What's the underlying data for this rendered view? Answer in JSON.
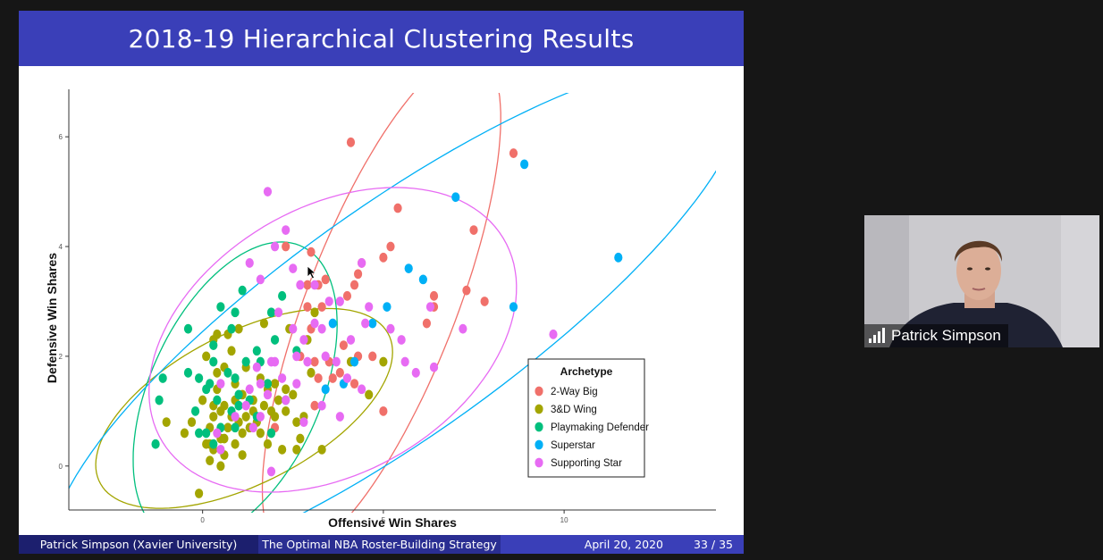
{
  "slide": {
    "title": "2018-19 Hierarchical Clustering Results",
    "footer": {
      "author": "Patrick Simpson  (Xavier University)",
      "talk_title": "The Optimal NBA Roster-Building Strategy",
      "date": "April 20, 2020",
      "page": "33 / 35"
    }
  },
  "video": {
    "participant_name": "Patrick Simpson",
    "icon": "signal-strength-icon"
  },
  "chart_data": {
    "type": "scatter",
    "xlabel": "Offensive Win Shares",
    "ylabel": "Defensive Win Shares",
    "x_ticks": [
      "0",
      "5",
      "10"
    ],
    "y_ticks": [
      "0",
      "2",
      "4",
      "6"
    ],
    "xlim": [
      -3.7,
      14.2
    ],
    "ylim": [
      -0.85,
      6.8
    ],
    "grid": false,
    "legend": {
      "title": "Archetype",
      "position": "bottom-right"
    },
    "series": [
      {
        "name": "2-Way Big",
        "color": "#f0706a",
        "points": [
          [
            4.1,
            5.9
          ],
          [
            8.6,
            5.7
          ],
          [
            5.4,
            4.7
          ],
          [
            7.5,
            4.3
          ],
          [
            2.3,
            4.0
          ],
          [
            3.0,
            3.9
          ],
          [
            4.4,
            3.7
          ],
          [
            5.2,
            4.0
          ],
          [
            5.0,
            3.8
          ],
          [
            4.3,
            3.5
          ],
          [
            3.4,
            3.4
          ],
          [
            2.9,
            3.3
          ],
          [
            3.2,
            3.3
          ],
          [
            4.2,
            3.3
          ],
          [
            7.3,
            3.2
          ],
          [
            7.8,
            3.0
          ],
          [
            6.4,
            3.1
          ],
          [
            4.0,
            3.1
          ],
          [
            2.9,
            2.9
          ],
          [
            3.3,
            2.9
          ],
          [
            3.0,
            2.5
          ],
          [
            6.2,
            2.6
          ],
          [
            6.4,
            2.9
          ],
          [
            3.9,
            2.2
          ],
          [
            4.3,
            2.0
          ],
          [
            4.7,
            2.0
          ],
          [
            2.7,
            2.0
          ],
          [
            3.1,
            1.9
          ],
          [
            3.2,
            1.6
          ],
          [
            3.6,
            1.6
          ],
          [
            3.8,
            1.7
          ],
          [
            4.2,
            1.5
          ],
          [
            3.1,
            1.1
          ],
          [
            5.0,
            1.0
          ],
          [
            2.0,
            0.7
          ],
          [
            3.5,
            1.9
          ]
        ]
      },
      {
        "name": "3&D Wing",
        "color": "#a3a500",
        "points": [
          [
            -0.1,
            -0.5
          ],
          [
            0.3,
            2.3
          ],
          [
            0.4,
            2.4
          ],
          [
            0.7,
            2.4
          ],
          [
            1.0,
            2.5
          ],
          [
            2.4,
            2.5
          ],
          [
            3.1,
            2.8
          ],
          [
            1.7,
            2.6
          ],
          [
            0.1,
            2.0
          ],
          [
            0.6,
            1.8
          ],
          [
            0.8,
            2.1
          ],
          [
            1.2,
            1.8
          ],
          [
            1.6,
            1.6
          ],
          [
            2.0,
            1.5
          ],
          [
            2.3,
            1.4
          ],
          [
            2.9,
            2.3
          ],
          [
            3.0,
            1.7
          ],
          [
            0.4,
            1.4
          ],
          [
            0.9,
            1.5
          ],
          [
            1.1,
            1.3
          ],
          [
            1.4,
            1.2
          ],
          [
            1.7,
            1.1
          ],
          [
            1.9,
            1.0
          ],
          [
            2.1,
            1.2
          ],
          [
            2.5,
            1.3
          ],
          [
            0.3,
            1.1
          ],
          [
            0.5,
            1.0
          ],
          [
            0.8,
            0.9
          ],
          [
            1.0,
            0.8
          ],
          [
            1.3,
            0.7
          ],
          [
            1.6,
            0.6
          ],
          [
            2.6,
            0.8
          ],
          [
            2.7,
            0.5
          ],
          [
            0.2,
            0.7
          ],
          [
            0.6,
            0.5
          ],
          [
            0.9,
            0.4
          ],
          [
            1.1,
            0.2
          ],
          [
            0.2,
            0.1
          ],
          [
            0.5,
            0.0
          ],
          [
            1.8,
            0.4
          ],
          [
            2.2,
            0.3
          ],
          [
            2.6,
            0.3
          ],
          [
            3.3,
            0.3
          ],
          [
            -1.0,
            0.8
          ],
          [
            -0.5,
            0.6
          ],
          [
            -0.3,
            0.8
          ],
          [
            0.0,
            1.2
          ],
          [
            0.3,
            0.9
          ],
          [
            0.5,
            0.5
          ],
          [
            0.2,
            0.4
          ],
          [
            0.6,
            1.1
          ],
          [
            1.2,
            0.9
          ],
          [
            1.5,
            0.8
          ],
          [
            2.0,
            0.9
          ],
          [
            2.3,
            1.0
          ],
          [
            1.8,
            1.4
          ],
          [
            0.9,
            1.2
          ],
          [
            0.4,
            1.7
          ],
          [
            4.1,
            1.9
          ],
          [
            5.0,
            1.9
          ],
          [
            4.6,
            1.3
          ],
          [
            0.1,
            0.4
          ],
          [
            0.3,
            0.3
          ],
          [
            1.4,
            1.0
          ],
          [
            0.7,
            0.7
          ],
          [
            2.8,
            0.9
          ],
          [
            1.1,
            0.6
          ],
          [
            0.6,
            0.2
          ]
        ]
      },
      {
        "name": "Playmaking Defender",
        "color": "#00bf7d",
        "points": [
          [
            1.1,
            3.2
          ],
          [
            2.2,
            3.1
          ],
          [
            0.5,
            2.9
          ],
          [
            0.9,
            2.8
          ],
          [
            1.9,
            2.8
          ],
          [
            -0.4,
            2.5
          ],
          [
            0.8,
            2.5
          ],
          [
            2.0,
            2.3
          ],
          [
            0.3,
            2.2
          ],
          [
            1.5,
            2.1
          ],
          [
            2.6,
            2.1
          ],
          [
            0.3,
            1.9
          ],
          [
            1.2,
            1.9
          ],
          [
            -0.4,
            1.7
          ],
          [
            -1.1,
            1.6
          ],
          [
            -0.1,
            1.6
          ],
          [
            0.9,
            1.6
          ],
          [
            1.8,
            1.5
          ],
          [
            0.1,
            1.4
          ],
          [
            1.0,
            1.3
          ],
          [
            -1.2,
            1.2
          ],
          [
            0.4,
            1.2
          ],
          [
            1.3,
            1.2
          ],
          [
            2.3,
            1.2
          ],
          [
            -0.2,
            1.0
          ],
          [
            0.8,
            1.0
          ],
          [
            1.5,
            0.9
          ],
          [
            0.5,
            0.7
          ],
          [
            -0.1,
            0.6
          ],
          [
            0.9,
            0.7
          ],
          [
            1.9,
            0.6
          ],
          [
            0.3,
            0.4
          ],
          [
            -1.3,
            0.4
          ],
          [
            0.1,
            0.6
          ],
          [
            0.7,
            1.7
          ],
          [
            1.6,
            1.9
          ],
          [
            0.2,
            1.5
          ],
          [
            1.0,
            1.1
          ]
        ]
      },
      {
        "name": "Superstar",
        "color": "#00b0f6",
        "points": [
          [
            8.9,
            5.5
          ],
          [
            7.0,
            4.9
          ],
          [
            11.5,
            3.8
          ],
          [
            5.7,
            3.6
          ],
          [
            6.1,
            3.4
          ],
          [
            8.6,
            2.9
          ],
          [
            5.1,
            2.9
          ],
          [
            3.6,
            2.6
          ],
          [
            4.7,
            2.6
          ],
          [
            4.2,
            1.9
          ],
          [
            3.9,
            1.5
          ],
          [
            3.4,
            1.4
          ]
        ]
      },
      {
        "name": "Supporting Star",
        "color": "#e76bf3",
        "points": [
          [
            1.8,
            5.0
          ],
          [
            2.3,
            4.3
          ],
          [
            2.0,
            4.0
          ],
          [
            1.3,
            3.7
          ],
          [
            4.4,
            3.7
          ],
          [
            1.6,
            3.4
          ],
          [
            2.5,
            3.6
          ],
          [
            3.1,
            3.3
          ],
          [
            2.7,
            3.3
          ],
          [
            3.5,
            3.0
          ],
          [
            2.1,
            2.8
          ],
          [
            3.1,
            2.6
          ],
          [
            3.3,
            2.5
          ],
          [
            2.5,
            2.5
          ],
          [
            2.8,
            2.3
          ],
          [
            3.8,
            3.0
          ],
          [
            4.6,
            2.9
          ],
          [
            5.2,
            2.5
          ],
          [
            5.5,
            2.3
          ],
          [
            6.3,
            2.9
          ],
          [
            7.2,
            2.5
          ],
          [
            9.7,
            2.4
          ],
          [
            4.5,
            2.6
          ],
          [
            4.1,
            2.3
          ],
          [
            2.9,
            1.9
          ],
          [
            3.4,
            2.0
          ],
          [
            3.7,
            1.9
          ],
          [
            4.0,
            1.6
          ],
          [
            4.4,
            1.4
          ],
          [
            5.6,
            1.9
          ],
          [
            5.9,
            1.7
          ],
          [
            6.4,
            1.8
          ],
          [
            1.9,
            1.9
          ],
          [
            2.2,
            1.6
          ],
          [
            1.6,
            1.5
          ],
          [
            2.6,
            1.5
          ],
          [
            1.3,
            1.4
          ],
          [
            1.8,
            1.3
          ],
          [
            2.3,
            1.2
          ],
          [
            2.8,
            0.8
          ],
          [
            1.2,
            1.1
          ],
          [
            1.6,
            0.9
          ],
          [
            0.5,
            1.5
          ],
          [
            0.4,
            0.6
          ],
          [
            0.5,
            0.3
          ],
          [
            1.4,
            0.7
          ],
          [
            3.8,
            0.9
          ],
          [
            1.9,
            -0.1
          ],
          [
            2.6,
            2.0
          ],
          [
            3.3,
            1.1
          ],
          [
            0.9,
            0.9
          ],
          [
            2.0,
            1.9
          ],
          [
            1.5,
            1.8
          ]
        ]
      }
    ],
    "ellipses": [
      {
        "series": "2-Way Big",
        "color": "#f0706a",
        "cx": 4.95,
        "cy": 2.95,
        "rx": 5.3,
        "ry": 1.9,
        "angle": 57
      },
      {
        "series": "3&D Wing",
        "color": "#a3a500",
        "cx": 1.15,
        "cy": 1.05,
        "rx": 4.25,
        "ry": 1.45,
        "angle": 16
      },
      {
        "series": "Playmaking Defender",
        "color": "#00bf7d",
        "cx": 0.9,
        "cy": 1.35,
        "rx": 3.35,
        "ry": 2.05,
        "angle": 43
      },
      {
        "series": "Superstar",
        "color": "#00b0f6",
        "cx": 5.4,
        "cy": 2.65,
        "rx": 10.4,
        "ry": 2.3,
        "angle": 24
      },
      {
        "series": "Supporting Star",
        "color": "#e76bf3",
        "cx": 3.6,
        "cy": 2.3,
        "rx": 5.2,
        "ry": 2.55,
        "angle": 14
      }
    ]
  }
}
